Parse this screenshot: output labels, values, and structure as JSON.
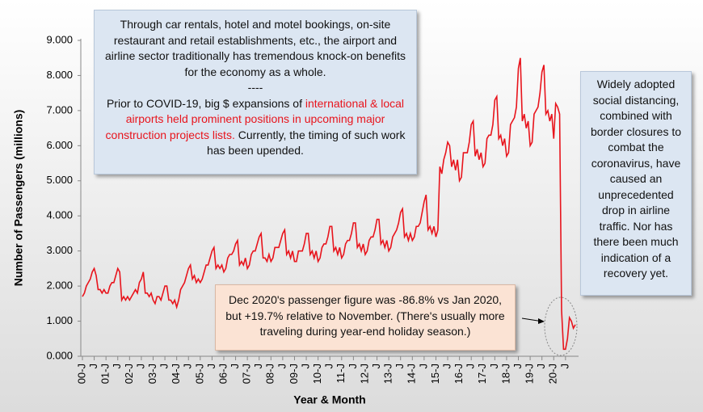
{
  "chart_data": {
    "type": "line",
    "x_label": "Year & Month",
    "y_label": "Number of Passengers (millions)",
    "ylim": [
      0,
      9
    ],
    "yticks": [
      {
        "value": 0,
        "label": "0.000"
      },
      {
        "value": 1,
        "label": "1.000"
      },
      {
        "value": 2,
        "label": "2.000"
      },
      {
        "value": 3,
        "label": "3.000"
      },
      {
        "value": 4,
        "label": "4.000"
      },
      {
        "value": 5,
        "label": "5.000"
      },
      {
        "value": 6,
        "label": "6.000"
      },
      {
        "value": 7,
        "label": "7.000"
      },
      {
        "value": 8,
        "label": "8.000"
      },
      {
        "value": 9,
        "label": "9.000"
      }
    ],
    "grid": false,
    "categories": [
      "00-J",
      null,
      null,
      null,
      null,
      null,
      "J",
      null,
      null,
      null,
      null,
      null,
      "01-J",
      null,
      null,
      null,
      null,
      null,
      "J",
      null,
      null,
      null,
      null,
      null,
      "02-J",
      null,
      null,
      null,
      null,
      null,
      "J",
      null,
      null,
      null,
      null,
      null,
      "03-J",
      null,
      null,
      null,
      null,
      null,
      "J",
      null,
      null,
      null,
      null,
      null,
      "04-J",
      null,
      null,
      null,
      null,
      null,
      "J",
      null,
      null,
      null,
      null,
      null,
      "05-J",
      null,
      null,
      null,
      null,
      null,
      "J",
      null,
      null,
      null,
      null,
      null,
      "06-J",
      null,
      null,
      null,
      null,
      null,
      "J",
      null,
      null,
      null,
      null,
      null,
      "07-J",
      null,
      null,
      null,
      null,
      null,
      "J",
      null,
      null,
      null,
      null,
      null,
      "08-J",
      null,
      null,
      null,
      null,
      null,
      "J",
      null,
      null,
      null,
      null,
      null,
      "09-J",
      null,
      null,
      null,
      null,
      null,
      "J",
      null,
      null,
      null,
      null,
      null,
      "10-J",
      null,
      null,
      null,
      null,
      null,
      "J",
      null,
      null,
      null,
      null,
      null,
      "11-J",
      null,
      null,
      null,
      null,
      null,
      "J",
      null,
      null,
      null,
      null,
      null,
      "12-J",
      null,
      null,
      null,
      null,
      null,
      "J",
      null,
      null,
      null,
      null,
      null,
      "13-J",
      null,
      null,
      null,
      null,
      null,
      "J",
      null,
      null,
      null,
      null,
      null,
      "14-J",
      null,
      null,
      null,
      null,
      null,
      "J",
      null,
      null,
      null,
      null,
      null,
      "15-J",
      null,
      null,
      null,
      null,
      null,
      "J",
      null,
      null,
      null,
      null,
      null,
      "16-J",
      null,
      null,
      null,
      null,
      null,
      "J",
      null,
      null,
      null,
      null,
      null,
      "17-J",
      null,
      null,
      null,
      null,
      null,
      "J",
      null,
      null,
      null,
      null,
      null,
      "18-J",
      null,
      null,
      null,
      null,
      null,
      "J",
      null,
      null,
      null,
      null,
      null,
      "19-J",
      null,
      null,
      null,
      null,
      null,
      "J",
      null,
      null,
      null,
      null,
      null,
      "20-J",
      null,
      null,
      null,
      null,
      null,
      "J",
      null,
      null,
      null,
      null,
      null
    ],
    "series": [
      {
        "color": "#e8141c",
        "values": [
          1.7,
          1.8,
          2.0,
          2.1,
          2.2,
          2.4,
          2.5,
          2.3,
          1.9,
          1.9,
          1.8,
          1.9,
          1.8,
          1.8,
          2.0,
          2.1,
          2.1,
          2.3,
          2.5,
          2.4,
          1.6,
          1.7,
          1.6,
          1.7,
          1.6,
          1.7,
          1.8,
          1.9,
          1.8,
          2.1,
          2.2,
          2.4,
          1.8,
          1.8,
          1.7,
          1.8,
          1.6,
          1.5,
          1.7,
          1.7,
          1.6,
          1.8,
          2.0,
          2.0,
          1.6,
          1.6,
          1.5,
          1.6,
          1.4,
          1.6,
          1.9,
          2.0,
          2.1,
          2.3,
          2.5,
          2.6,
          2.2,
          2.3,
          2.1,
          2.2,
          2.1,
          2.2,
          2.4,
          2.6,
          2.6,
          2.8,
          3.0,
          3.1,
          2.5,
          2.6,
          2.5,
          2.6,
          2.4,
          2.5,
          2.8,
          2.9,
          2.9,
          3.0,
          3.2,
          3.3,
          2.6,
          2.7,
          2.6,
          2.8,
          2.5,
          2.6,
          2.9,
          3.0,
          3.0,
          3.2,
          3.4,
          3.5,
          2.8,
          2.8,
          2.7,
          2.9,
          2.7,
          2.8,
          3.1,
          3.1,
          3.1,
          3.3,
          3.5,
          3.6,
          2.9,
          3.0,
          2.8,
          3.0,
          2.7,
          2.7,
          3.0,
          3.0,
          3.0,
          3.2,
          3.5,
          3.5,
          2.9,
          3.0,
          2.8,
          3.0,
          2.7,
          2.8,
          3.1,
          3.2,
          3.2,
          3.4,
          3.7,
          3.7,
          3.0,
          3.1,
          2.9,
          3.1,
          2.8,
          2.9,
          3.2,
          3.3,
          3.3,
          3.5,
          3.8,
          3.8,
          3.1,
          3.2,
          3.0,
          3.2,
          2.9,
          3.0,
          3.3,
          3.4,
          3.4,
          3.6,
          3.9,
          3.9,
          3.2,
          3.3,
          3.1,
          3.3,
          3.0,
          3.1,
          3.4,
          3.5,
          3.6,
          3.8,
          4.1,
          4.2,
          3.4,
          3.5,
          3.3,
          3.5,
          3.3,
          3.4,
          3.7,
          3.7,
          3.8,
          4.1,
          4.4,
          4.6,
          3.6,
          3.7,
          3.5,
          3.7,
          3.4,
          3.6,
          5.4,
          5.2,
          5.6,
          5.8,
          6.1,
          6.0,
          5.4,
          5.6,
          5.3,
          5.6,
          5.0,
          5.1,
          5.8,
          5.8,
          5.8,
          6.1,
          6.6,
          6.7,
          5.7,
          5.9,
          5.6,
          5.8,
          5.4,
          5.5,
          6.2,
          6.3,
          6.3,
          6.6,
          7.3,
          7.4,
          6.2,
          6.3,
          6.0,
          6.2,
          5.7,
          5.8,
          6.6,
          6.7,
          6.8,
          7.1,
          8.2,
          8.5,
          6.7,
          6.9,
          6.5,
          6.7,
          6.0,
          6.1,
          6.9,
          7.0,
          7.1,
          7.5,
          8.1,
          8.3,
          6.9,
          7.0,
          6.7,
          6.9,
          6.2,
          7.2,
          7.1,
          6.9,
          1.3,
          0.2,
          0.2,
          0.5,
          1.1,
          1.0,
          0.8,
          0.9
        ]
      }
    ],
    "annotations": [
      {
        "parts": [
          "Through car rentals, hotel and motel bookings, on-site restaurant and retail establishments, etc., the airport and airline sector traditionally has tremendous knock-on benefits for the economy as a whole.",
          "----",
          "Prior to COVID-19, big $ expansions of ",
          "international & local airports held prominent positions in upcoming major construction projects lists.",
          " Currently, the timing of such work has been upended."
        ]
      },
      {
        "parts": [
          "Widely adopted social distancing, combined with border closures to combat the coronavirus, have caused an unprecedented drop in airline traffic. Nor has there been much indication of a recovery yet."
        ]
      },
      {
        "parts": [
          "Dec 2020's passenger figure was -86.8% vs Jan 2020, but +19.7% relative to November. (There's usually more traveling during year-end holiday season.)"
        ]
      }
    ]
  }
}
